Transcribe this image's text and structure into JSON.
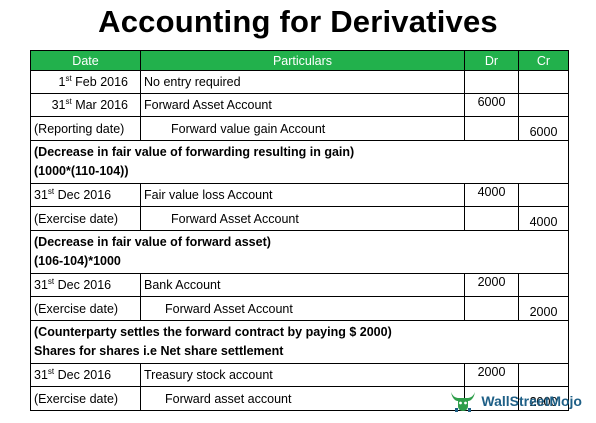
{
  "title": "Accounting for Derivatives",
  "headers": {
    "date": "Date",
    "particulars": "Particulars",
    "dr": "Dr",
    "cr": "Cr"
  },
  "rows": [
    {
      "day": "1",
      "suffix": "st",
      "rest": " Feb 2016",
      "particulars": "No entry required",
      "dr": "",
      "cr": ""
    },
    {
      "day": "31",
      "suffix": "st",
      "rest": " Mar 2016",
      "particulars": "Forward Asset Account",
      "dr": "6000",
      "cr": ""
    },
    {
      "date": "(Reporting date)",
      "particulars": "Forward value gain Account",
      "dr": "",
      "cr": "6000"
    },
    {
      "note": "(Decrease in fair value of forwarding resulting in gain)",
      "note2": "(1000*(110-104))"
    },
    {
      "day": "31",
      "suffix": "st",
      "rest": " Dec 2016",
      "particulars": "Fair value loss Account",
      "dr": "4000",
      "cr": ""
    },
    {
      "date": "(Exercise date)",
      "particulars": "Forward Asset Account",
      "dr": "",
      "cr": "4000"
    },
    {
      "note": "(Decrease in fair value of forward asset)",
      "note2": "(106-104)*1000"
    },
    {
      "day": "31",
      "suffix": "st",
      "rest": " Dec 2016",
      "particulars": "Bank Account",
      "dr": "2000",
      "cr": ""
    },
    {
      "date": "(Exercise date)",
      "particulars": "Forward Asset Account",
      "dr": "",
      "cr": "2000"
    },
    {
      "note": "(Counterparty settles the forward contract by paying $ 2000)",
      "note2": "Shares for shares i.e Net share settlement"
    },
    {
      "day": "31",
      "suffix": "st",
      "rest": " Dec 2016",
      "particulars": "Treasury stock account",
      "dr": "2000",
      "cr": ""
    },
    {
      "date": "(Exercise date)",
      "particulars": "Forward asset account",
      "dr": "",
      "cr": "2000"
    }
  ],
  "logo": {
    "text": "WallStreetMojo",
    "icon": "bull-icon",
    "color": "#1e5f86"
  },
  "colors": {
    "header_bg": "#22b14c",
    "header_text": "#ffffff"
  }
}
